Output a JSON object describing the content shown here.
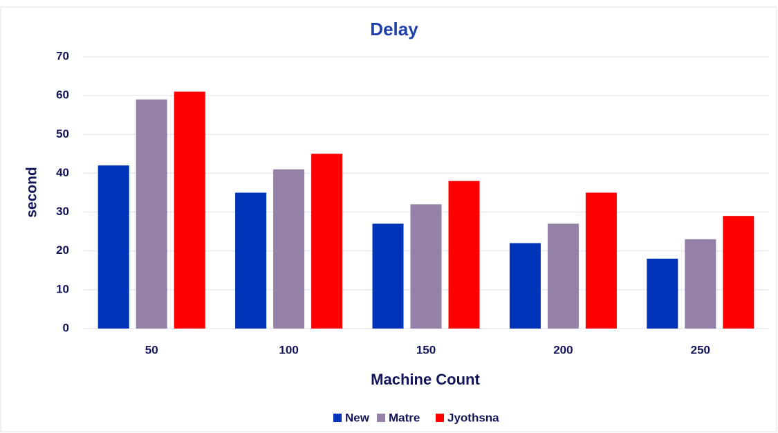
{
  "chart_data": {
    "type": "bar",
    "title": "Delay",
    "xlabel": "Machine Count",
    "ylabel": "second",
    "categories": [
      "50",
      "100",
      "150",
      "200",
      "250"
    ],
    "series": [
      {
        "name": "New",
        "color": "#0033b8",
        "values": [
          42,
          35,
          27,
          22,
          18
        ]
      },
      {
        "name": "Matre",
        "color": "#9580a8",
        "values": [
          59,
          41,
          32,
          27,
          23
        ]
      },
      {
        "name": "Jyothsna",
        "color": "#ff0000",
        "values": [
          61,
          45,
          38,
          35,
          29
        ]
      }
    ],
    "ylim": [
      0,
      70
    ],
    "yticks": [
      0,
      10,
      20,
      30,
      40,
      50,
      60,
      70
    ],
    "grid": true,
    "legend": "bottom"
  }
}
